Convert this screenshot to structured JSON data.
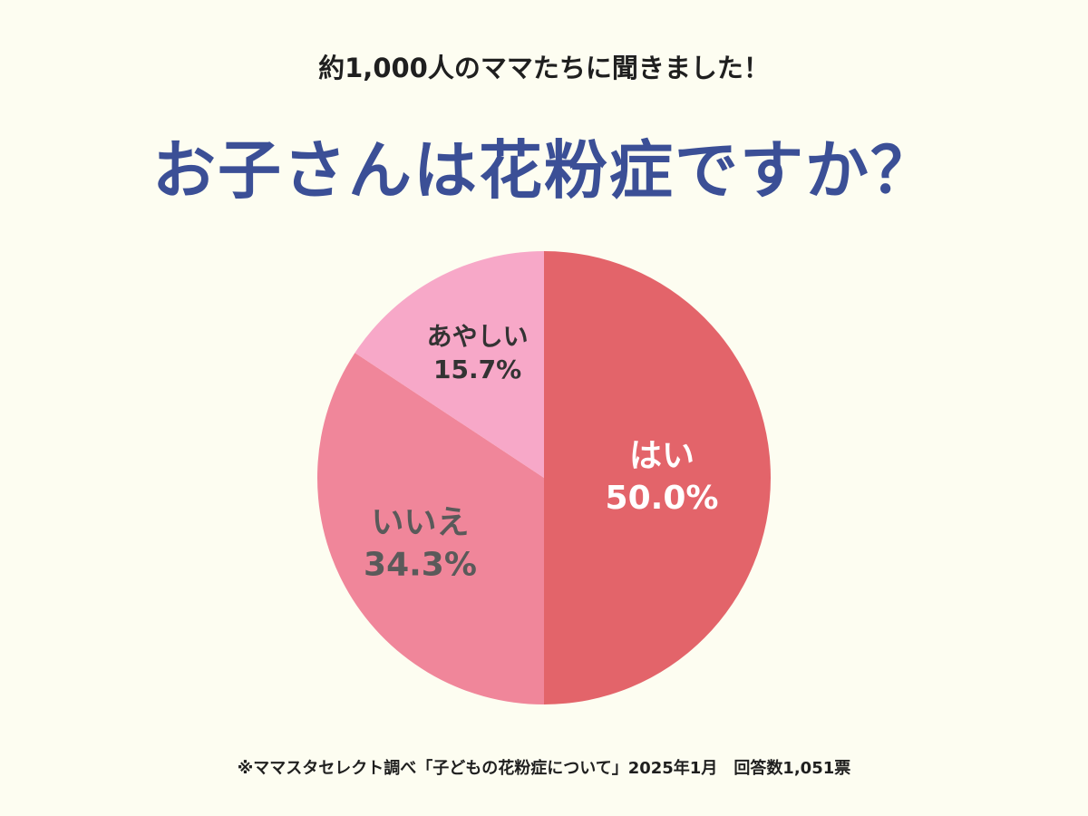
{
  "header": {
    "subtitle": "約1,000人のママたちに聞きました！",
    "title": "お子さんは花粉症ですか？"
  },
  "chart_data": {
    "type": "pie",
    "slices": [
      {
        "label": "はい",
        "value": 50.0,
        "value_label": "50.0%",
        "color": "#e3646a",
        "text_color": "#ffffff"
      },
      {
        "label": "いいえ",
        "value": 34.3,
        "value_label": "34.3%",
        "color": "#f0869a",
        "text_color": "#5a5a5a"
      },
      {
        "label": "あやしい",
        "value": 15.7,
        "value_label": "15.7%",
        "color": "#f7a8c8",
        "text_color": "#333333"
      }
    ],
    "start_angle": "12 o'clock",
    "direction": "clockwise"
  },
  "footer": {
    "note": "※ママスタセレクト調べ「子どもの花粉症について」2025年1月　回答数1,051票"
  }
}
